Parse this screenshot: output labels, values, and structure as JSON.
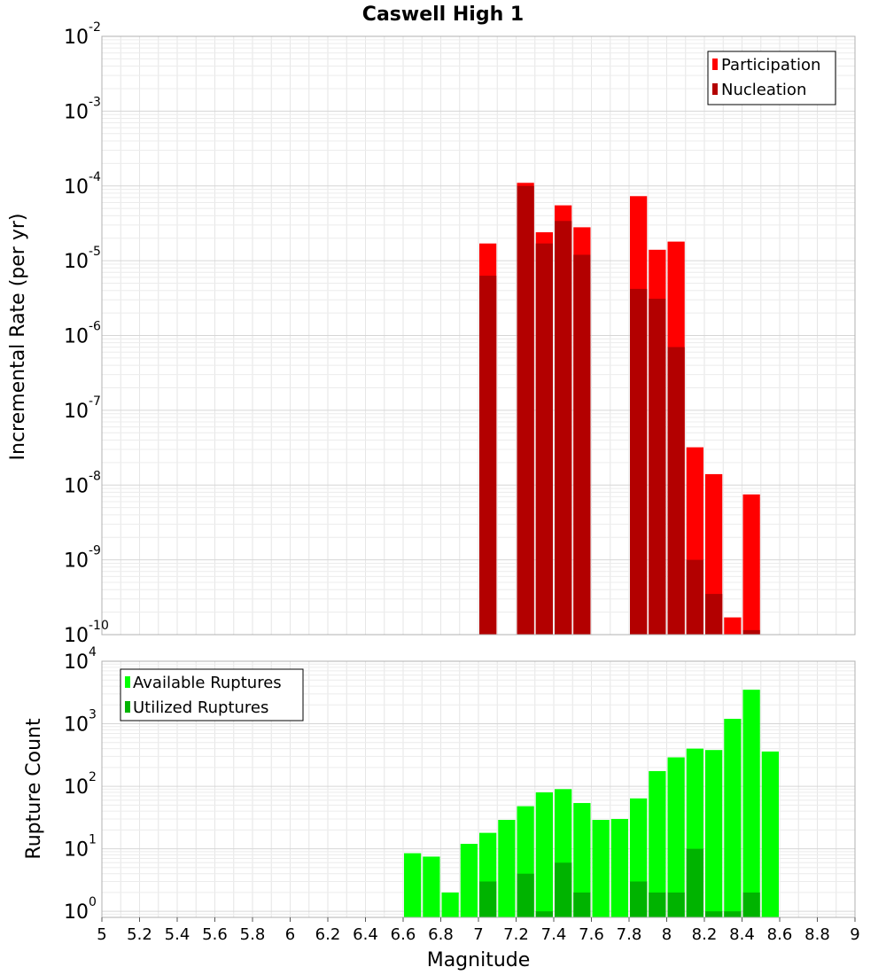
{
  "chart_data": [
    {
      "type": "bar",
      "title": "Caswell High 1",
      "xlabel": "",
      "ylabel": "Incremental Rate (per yr)",
      "yscale": "log",
      "ylim": [
        1e-10,
        0.01
      ],
      "xlim": [
        5,
        9
      ],
      "bar_width": 0.1,
      "grid": true,
      "legend_position": "top-right",
      "tick_labels": [
        {
          "base": "10",
          "exp": "-2"
        },
        {
          "base": "10",
          "exp": "-3"
        },
        {
          "base": "10",
          "exp": "-4"
        },
        {
          "base": "10",
          "exp": "-5"
        },
        {
          "base": "10",
          "exp": "-6"
        },
        {
          "base": "10",
          "exp": "-7"
        },
        {
          "base": "10",
          "exp": "-8"
        },
        {
          "base": "10",
          "exp": "-9"
        },
        {
          "base": "10",
          "exp": "-10"
        }
      ],
      "series": [
        {
          "name": "Participation",
          "color": "#ff0000",
          "points": [
            [
              7.05,
              1.7e-05
            ],
            [
              7.25,
              0.00011
            ],
            [
              7.35,
              2.4e-05
            ],
            [
              7.45,
              5.5e-05
            ],
            [
              7.55,
              2.8e-05
            ],
            [
              7.85,
              7.3e-05
            ],
            [
              7.95,
              1.4e-05
            ],
            [
              8.05,
              1.8e-05
            ],
            [
              8.15,
              3.2e-08
            ],
            [
              8.25,
              1.4e-08
            ],
            [
              8.35,
              1.7e-10
            ],
            [
              8.45,
              7.5e-09
            ]
          ]
        },
        {
          "name": "Nucleation",
          "color": "#b30000",
          "points": [
            [
              7.05,
              6.3e-06
            ],
            [
              7.25,
              0.0001
            ],
            [
              7.35,
              1.7e-05
            ],
            [
              7.45,
              3.4e-05
            ],
            [
              7.55,
              1.2e-05
            ],
            [
              7.85,
              4.2e-06
            ],
            [
              7.95,
              3.1e-06
            ],
            [
              8.05,
              7e-07
            ],
            [
              8.15,
              1e-09
            ],
            [
              8.25,
              3.5e-10
            ],
            [
              8.45,
              1.15e-10
            ]
          ]
        }
      ]
    },
    {
      "type": "bar",
      "title": "",
      "xlabel": "Magnitude",
      "ylabel": "Rupture Count",
      "yscale": "log",
      "ylim": [
        0.8,
        10000
      ],
      "xlim": [
        5,
        9
      ],
      "bar_width": 0.1,
      "grid": true,
      "legend_position": "top-left",
      "tick_labels": [
        {
          "base": "10",
          "exp": "4"
        },
        {
          "base": "10",
          "exp": "3"
        },
        {
          "base": "10",
          "exp": "2"
        },
        {
          "base": "10",
          "exp": "1"
        },
        {
          "base": "10",
          "exp": "0"
        }
      ],
      "x_ticks": [
        "5",
        "5.2",
        "5.4",
        "5.6",
        "5.8",
        "6",
        "6.2",
        "6.4",
        "6.6",
        "6.8",
        "7",
        "7.2",
        "7.4",
        "7.6",
        "7.8",
        "8",
        "8.2",
        "8.4",
        "8.6",
        "8.8",
        "9"
      ],
      "series": [
        {
          "name": "Available Ruptures",
          "color": "#00ff00",
          "points": [
            [
              6.65,
              8.5
            ],
            [
              6.75,
              7.5
            ],
            [
              6.85,
              2
            ],
            [
              6.95,
              12
            ],
            [
              7.05,
              18
            ],
            [
              7.15,
              29
            ],
            [
              7.25,
              48
            ],
            [
              7.35,
              80
            ],
            [
              7.45,
              90
            ],
            [
              7.55,
              54
            ],
            [
              7.65,
              29
            ],
            [
              7.75,
              30
            ],
            [
              7.85,
              64
            ],
            [
              7.95,
              175
            ],
            [
              8.05,
              290
            ],
            [
              8.15,
              400
            ],
            [
              8.25,
              380
            ],
            [
              8.35,
              1200
            ],
            [
              8.45,
              3500
            ],
            [
              8.55,
              360
            ]
          ]
        },
        {
          "name": "Utilized Ruptures",
          "color": "#00b300",
          "points": [
            [
              7.05,
              3
            ],
            [
              7.25,
              4
            ],
            [
              7.35,
              1
            ],
            [
              7.45,
              6
            ],
            [
              7.55,
              2
            ],
            [
              7.85,
              3
            ],
            [
              7.95,
              2
            ],
            [
              8.05,
              2
            ],
            [
              8.15,
              10
            ],
            [
              8.25,
              1
            ],
            [
              8.35,
              1
            ],
            [
              8.45,
              2
            ]
          ]
        }
      ]
    }
  ]
}
